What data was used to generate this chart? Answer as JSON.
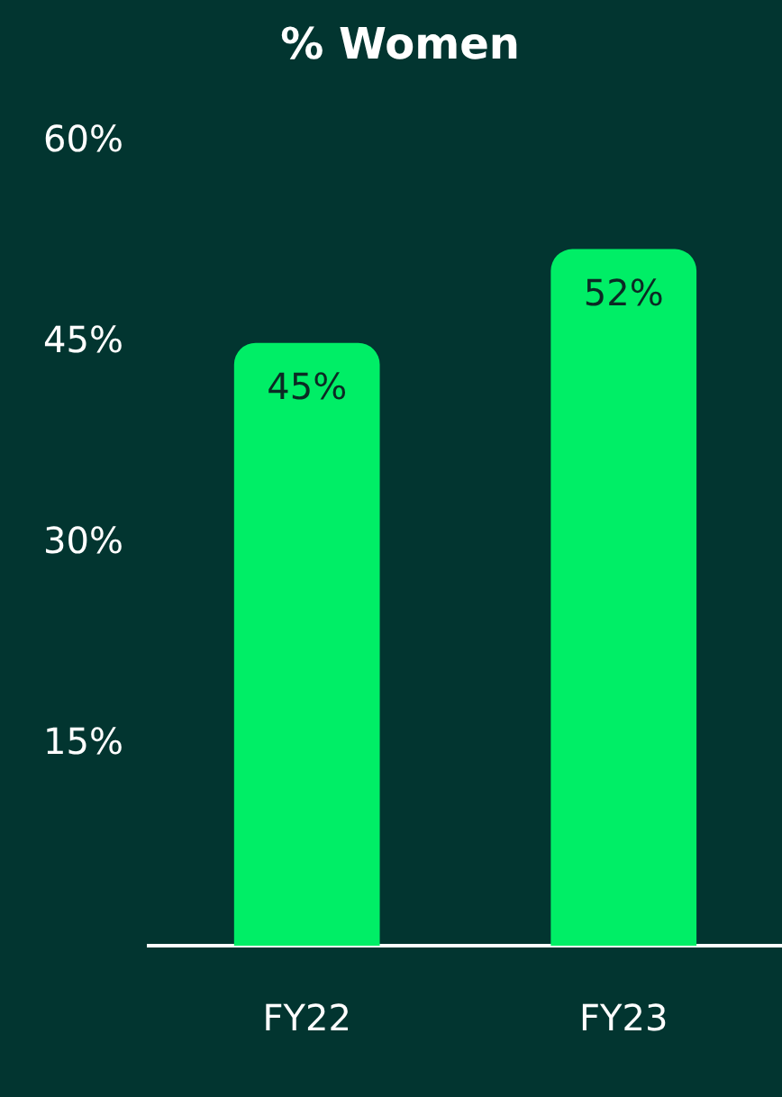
{
  "chart_data": {
    "type": "bar",
    "title": "% Women",
    "categories": [
      "FY22",
      "FY23"
    ],
    "values": [
      45,
      52
    ],
    "color": "#00ee66",
    "ylim": [
      0,
      60
    ],
    "yticks": [
      {
        "value": 15,
        "label": "15%"
      },
      {
        "value": 30,
        "label": "30%"
      },
      {
        "value": 45,
        "label": "45%"
      },
      {
        "value": 60,
        "label": "60%"
      }
    ],
    "grid": false,
    "legend": false,
    "value_labels": [
      "45%",
      "52%"
    ]
  }
}
